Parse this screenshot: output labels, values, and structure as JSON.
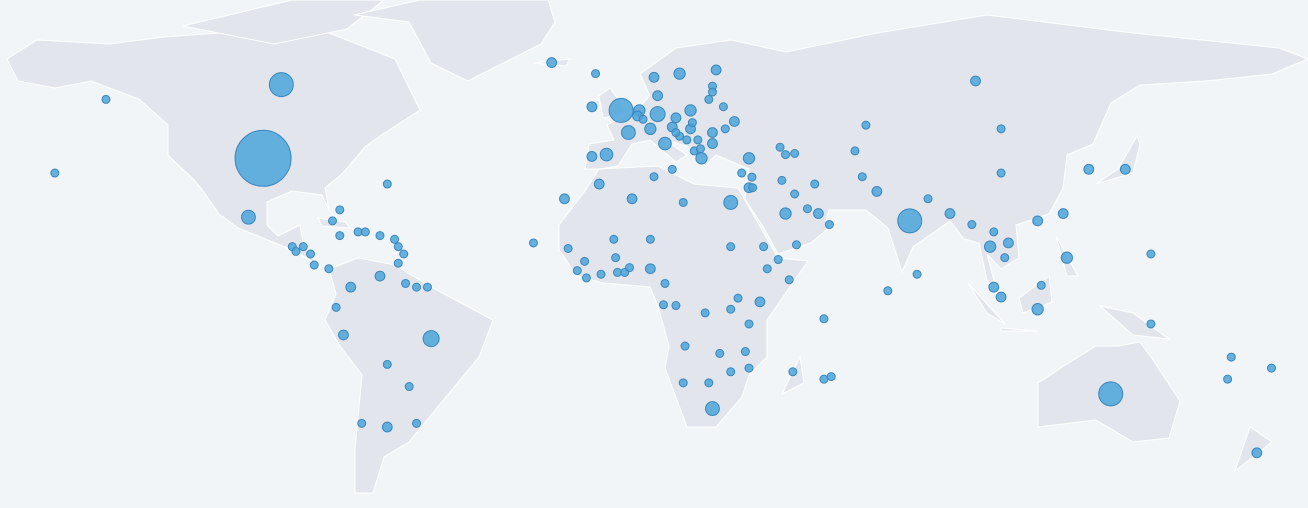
{
  "chart_data": {
    "type": "bubble-map",
    "color": "#4ba3d9",
    "xlim": [
      -170,
      188
    ],
    "ylim": [
      -56,
      82
    ],
    "x": [
      -98,
      -93,
      -141,
      -155,
      -102,
      -90,
      -87,
      -89,
      -85,
      -84,
      -80,
      -79,
      -77,
      -77,
      -72,
      -70,
      -66,
      -64,
      -61,
      -59.5,
      -61,
      -62,
      -74,
      -66,
      -59,
      -56,
      -53,
      -78,
      -76,
      -52,
      -64,
      -58,
      -71,
      -64,
      -56,
      0,
      -8,
      -19,
      -7,
      2,
      -4,
      -8,
      10,
      5,
      4.5,
      8,
      12,
      14,
      19,
      15,
      10,
      9,
      16,
      26,
      97,
      25,
      25,
      24,
      28,
      31,
      25,
      19,
      21,
      16,
      25,
      22,
      35,
      33,
      14,
      19.5,
      15,
      18,
      28.5,
      43.5,
      45,
      47.5,
      20,
      21.7,
      6,
      35,
      35.8,
      36,
      30,
      45,
      54,
      51,
      47.5,
      44,
      53,
      57,
      48,
      67,
      64,
      70,
      66,
      79,
      84,
      90,
      81,
      73,
      104,
      104,
      96,
      101,
      106,
      105,
      102,
      102,
      104,
      114,
      122,
      114,
      121,
      138,
      128,
      145,
      115,
      145,
      134,
      174,
      178,
      166,
      167,
      -6,
      3,
      9,
      17,
      -14.5,
      -2,
      -10,
      -12,
      -9.5,
      -5.5,
      -1,
      1,
      2.3,
      8,
      -1.5,
      8,
      12,
      11.6,
      15,
      23,
      30,
      40,
      46,
      38,
      32,
      30,
      35,
      17.5,
      27,
      34,
      35,
      30,
      24,
      17,
      25,
      47,
      57.5,
      55.5,
      -24,
      -15.5,
      43,
      39,
      55.5
    ],
    "y": [
      39,
      59,
      55,
      35,
      23,
      15,
      15,
      13.7,
      13,
      10,
      9,
      22,
      25,
      18,
      19,
      19,
      18,
      32,
      10.5,
      13,
      15,
      17,
      4,
      7,
      5,
      4,
      4,
      -1.5,
      -9,
      -10,
      -17,
      -23,
      -33,
      -34,
      -33,
      52,
      53,
      65,
      62,
      46,
      40,
      39.5,
      51,
      52,
      50.5,
      47,
      43,
      47.5,
      52,
      50,
      56,
      61,
      62,
      63,
      60,
      58.6,
      57,
      55,
      53,
      49,
      46,
      47,
      44,
      45,
      43,
      39,
      39,
      35,
      36,
      48.7,
      46,
      44,
      47,
      42,
      40,
      40.3,
      41,
      41.6,
      49.6,
      31,
      33.9,
      31,
      27,
      24,
      24,
      25.3,
      29.3,
      33,
      32,
      21,
      15.5,
      48,
      41,
      30,
      34,
      22,
      28,
      24,
      7.5,
      3,
      47,
      35,
      21,
      15,
      16,
      12,
      19,
      4,
      1.3,
      -2,
      12,
      22,
      24,
      36,
      36,
      13,
      4.5,
      -6,
      -25,
      -41,
      -18,
      -21,
      -15,
      32,
      28,
      34,
      27,
      14.5,
      17,
      11,
      8.5,
      6.5,
      7.5,
      8,
      8,
      9.3,
      9,
      12,
      17,
      5,
      -0.8,
      -1,
      -3,
      15,
      9,
      6,
      0,
      1,
      -2,
      -6,
      -12,
      -14,
      -13.5,
      -18,
      -19,
      -22,
      -22,
      -29,
      -19,
      -20.3,
      -4.6,
      16,
      28,
      11.5,
      15,
      -21
    ],
    "sizes": [
      49,
      9,
      1,
      1,
      3,
      1,
      1,
      1,
      1,
      1,
      1,
      1,
      1,
      1,
      1,
      1,
      1,
      1,
      1,
      1,
      1,
      1,
      1.5,
      1.5,
      1,
      1,
      1,
      1,
      1.5,
      4,
      1,
      1,
      1,
      1.5,
      1,
      9,
      1.5,
      1.5,
      1,
      3,
      2.5,
      1.5,
      3.5,
      2,
      1.5,
      2,
      2.5,
      1.5,
      2,
      1.5,
      1.5,
      1.5,
      2,
      1.5,
      1.5,
      1,
      1,
      1,
      1,
      1.5,
      1.5,
      1.5,
      1,
      1,
      1.5,
      2,
      2,
      1,
      1,
      1,
      1,
      1,
      1,
      1,
      1,
      1,
      1,
      1,
      1,
      1.5,
      1,
      1,
      3,
      2,
      1.5,
      1,
      1,
      1,
      1,
      1,
      1,
      1,
      1,
      1.5,
      1,
      9,
      1,
      1.5,
      1,
      1,
      1,
      1,
      1,
      2,
      1.5,
      1,
      1,
      1.5,
      1.5,
      2,
      2,
      1.5,
      1.5,
      1.5,
      1.5,
      1,
      1,
      1,
      9,
      1.5,
      1,
      1,
      1,
      1.5,
      1.5,
      1,
      1,
      1,
      1,
      1,
      1,
      1,
      1,
      1,
      1,
      1,
      1.5,
      1,
      1,
      1,
      1,
      1,
      1,
      1,
      1,
      1,
      1.5,
      1,
      1,
      1,
      1,
      1,
      1,
      1,
      1,
      1,
      1,
      3,
      1,
      1,
      1,
      1,
      1.5,
      1,
      1,
      1
    ]
  }
}
